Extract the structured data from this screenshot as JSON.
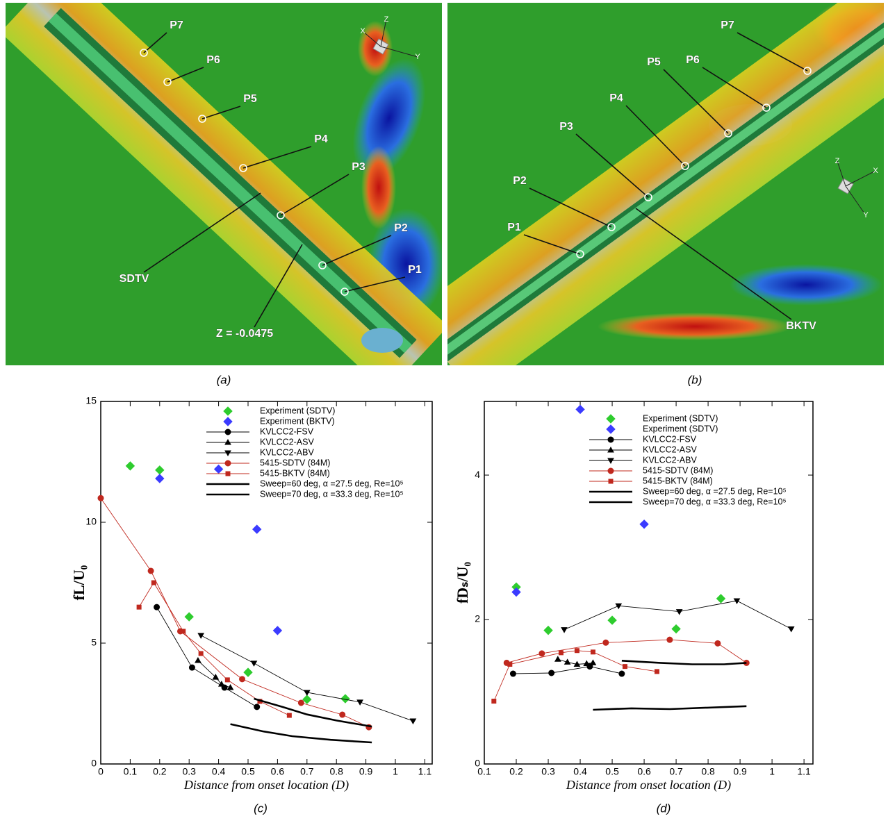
{
  "panels": [
    {
      "caption": "(a)",
      "labels": [
        "P7",
        "P6",
        "P5",
        "P4",
        "P3",
        "P2",
        "P1",
        "SDTV",
        "Z = -0.0475"
      ],
      "axes": [
        "X",
        "Z",
        "Y"
      ]
    },
    {
      "caption": "(b)",
      "labels": [
        "P7",
        "P6",
        "P5",
        "P4",
        "P3",
        "P2",
        "P1",
        "BKTV"
      ],
      "axes": [
        "Z",
        "X",
        "Y"
      ]
    }
  ],
  "chart_data": [
    {
      "type": "line",
      "caption": "(c)",
      "x_label": "Distance from onset location (D)",
      "y_label": "fL/U₀",
      "xlim": [
        0,
        1.125
      ],
      "ylim": [
        0,
        15
      ],
      "xticks": [
        0,
        0.1,
        0.2,
        0.3,
        0.4,
        0.5,
        0.6,
        0.7,
        0.8,
        0.9,
        1,
        1.1
      ],
      "yticks": [
        0,
        5,
        10,
        15
      ],
      "series": [
        {
          "name": "Experiment (SDTV)",
          "color": "#2ecc2e",
          "marker": "diamond",
          "line": false,
          "x": [
            0.1,
            0.2,
            0.3,
            0.5,
            0.7,
            0.83
          ],
          "values": [
            12.33,
            12.16,
            6.09,
            3.79,
            2.67,
            2.7
          ]
        },
        {
          "name": "Experiment (BKTV)",
          "color": "#3b3bff",
          "marker": "diamond",
          "line": false,
          "x": [
            0.2,
            0.4,
            0.53,
            0.6
          ],
          "values": [
            11.81,
            12.2,
            9.71,
            5.52
          ]
        },
        {
          "name": "KVLCC2-FSV",
          "color": "#000000",
          "marker": "circle",
          "line": true,
          "x": [
            0.19,
            0.31,
            0.42,
            0.53
          ],
          "values": [
            6.49,
            3.99,
            3.16,
            2.36
          ]
        },
        {
          "name": "KVLCC2-ASV",
          "color": "#000000",
          "marker": "triangle-up",
          "line": true,
          "x": [
            0.33,
            0.39,
            0.41,
            0.44
          ],
          "values": [
            4.28,
            3.59,
            3.3,
            3.16
          ]
        },
        {
          "name": "KVLCC2-ABV",
          "color": "#000000",
          "marker": "triangle-down",
          "line": true,
          "x": [
            0.34,
            0.52,
            0.7,
            0.88,
            1.06
          ],
          "values": [
            5.32,
            4.17,
            2.96,
            2.56,
            1.78
          ]
        },
        {
          "name": "5415-SDTV (84M)",
          "color": "#c0281e",
          "marker": "circle",
          "line": true,
          "x": [
            0,
            0.17,
            0.27,
            0.48,
            0.68,
            0.82,
            0.91
          ],
          "values": [
            11.0,
            7.99,
            5.49,
            3.51,
            2.53,
            2.04,
            1.52
          ]
        },
        {
          "name": "5415-BKTV (84M)",
          "color": "#c0281e",
          "marker": "square",
          "line": true,
          "x": [
            0.13,
            0.18,
            0.28,
            0.34,
            0.43,
            0.54,
            0.64
          ],
          "values": [
            6.49,
            7.5,
            5.49,
            4.57,
            3.48,
            2.59,
            2.01
          ]
        },
        {
          "name": "Sweep=60 deg, α =27.5 deg, Re=10⁵",
          "color": "#000000",
          "marker": "none",
          "line": true,
          "x": [
            0.52,
            0.62,
            0.7,
            0.8,
            0.92
          ],
          "values": [
            2.7,
            2.35,
            2.05,
            1.8,
            1.55
          ]
        },
        {
          "name": "Sweep=70 deg, α =33.3 deg, Re=10⁵",
          "color": "#000000",
          "marker": "none",
          "line": true,
          "x": [
            0.44,
            0.55,
            0.65,
            0.78,
            0.92
          ],
          "values": [
            1.65,
            1.35,
            1.15,
            1.0,
            0.89
          ]
        }
      ]
    },
    {
      "type": "line",
      "caption": "(d)",
      "x_label": "Distance from onset location (D)",
      "y_label": "fDₛ/U₀",
      "xlim": [
        0.1,
        1.128
      ],
      "ylim": [
        0,
        5.02
      ],
      "xticks": [
        0.1,
        0.2,
        0.3,
        0.4,
        0.5,
        0.6,
        0.7,
        0.8,
        0.9,
        1,
        1.1
      ],
      "yticks": [
        0,
        2,
        4
      ],
      "series": [
        {
          "name": "Experiment (SDTV)",
          "color": "#2ecc2e",
          "marker": "diamond",
          "line": false,
          "x": [
            0.2,
            0.3,
            0.5,
            0.7,
            0.84
          ],
          "values": [
            2.45,
            1.85,
            1.99,
            1.87,
            2.29
          ]
        },
        {
          "name": "Experiment (SDTV)",
          "color": "#3b3bff",
          "marker": "diamond",
          "line": false,
          "x": [
            0.2,
            0.4,
            0.6
          ],
          "values": [
            2.38,
            4.91,
            3.32
          ]
        },
        {
          "name": "KVLCC2-FSV",
          "color": "#000000",
          "marker": "circle",
          "line": true,
          "x": [
            0.19,
            0.31,
            0.43,
            0.53
          ],
          "values": [
            1.25,
            1.26,
            1.35,
            1.25
          ]
        },
        {
          "name": "KVLCC2-ASV",
          "color": "#000000",
          "marker": "triangle-up",
          "line": true,
          "x": [
            0.33,
            0.36,
            0.39,
            0.42,
            0.44
          ],
          "values": [
            1.45,
            1.41,
            1.38,
            1.39,
            1.4
          ]
        },
        {
          "name": "KVLCC2-ABV",
          "color": "#000000",
          "marker": "triangle-down",
          "line": true,
          "x": [
            0.35,
            0.52,
            0.71,
            0.89,
            1.06
          ],
          "values": [
            1.86,
            2.19,
            2.11,
            2.26,
            1.87
          ]
        },
        {
          "name": "5415-SDTV (84M)",
          "color": "#c0281e",
          "marker": "circle",
          "line": true,
          "x": [
            0.17,
            0.28,
            0.48,
            0.68,
            0.83,
            0.92
          ],
          "values": [
            1.4,
            1.53,
            1.68,
            1.72,
            1.67,
            1.4
          ]
        },
        {
          "name": "5415-BKTV (84M)",
          "color": "#c0281e",
          "marker": "square",
          "line": true,
          "x": [
            0.13,
            0.18,
            0.34,
            0.39,
            0.44,
            0.54,
            0.64
          ],
          "values": [
            0.87,
            1.38,
            1.54,
            1.57,
            1.55,
            1.35,
            1.28
          ]
        },
        {
          "name": "Sweep=60 deg, α =27.5 deg, Re=10⁵",
          "color": "#000000",
          "marker": "none",
          "line": true,
          "x": [
            0.53,
            0.65,
            0.75,
            0.85,
            0.92
          ],
          "values": [
            1.43,
            1.4,
            1.38,
            1.38,
            1.4
          ]
        },
        {
          "name": "Sweep=70 deg, α =33.3 deg, Re=10⁵",
          "color": "#000000",
          "marker": "none",
          "line": true,
          "x": [
            0.44,
            0.56,
            0.68,
            0.8,
            0.92
          ],
          "values": [
            0.75,
            0.77,
            0.76,
            0.78,
            0.8
          ]
        }
      ]
    }
  ]
}
